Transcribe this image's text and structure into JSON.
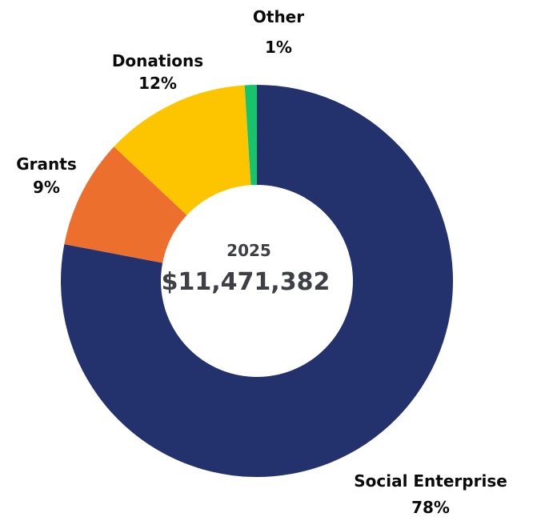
{
  "chart_data": {
    "type": "pie",
    "donut": true,
    "center": {
      "year": "2025",
      "total": "$11,471,382"
    },
    "slices": [
      {
        "name": "Social Enterprise",
        "percent_label": "78%",
        "value": 78,
        "color": "#23316d"
      },
      {
        "name": "Grants",
        "percent_label": "9%",
        "value": 9,
        "color": "#ec6f2e"
      },
      {
        "name": "Donations",
        "percent_label": "12%",
        "value": 12,
        "color": "#fdc500"
      },
      {
        "name": "Other",
        "percent_label": "1%",
        "value": 1,
        "color": "#17c46b"
      }
    ]
  }
}
